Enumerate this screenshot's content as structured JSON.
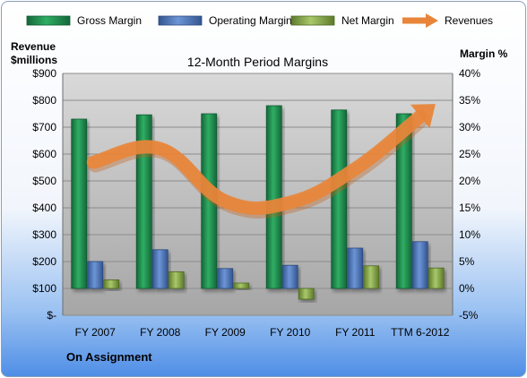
{
  "chart_data": {
    "type": "bar",
    "title": "12-Month Period Margins",
    "company": "On Assignment",
    "y_left_label_line1": "Revenue",
    "y_left_label_line2": "$millions",
    "y_right_label": "Margin %",
    "y_left_ticks": [
      "$-",
      "$100",
      "$200",
      "$300",
      "$400",
      "$500",
      "$600",
      "$700",
      "$800",
      "$900"
    ],
    "y_right_ticks": [
      "-5%",
      "0%",
      "5%",
      "10%",
      "15%",
      "20%",
      "25%",
      "30%",
      "35%",
      "40%"
    ],
    "ylim_left": [
      0,
      900
    ],
    "ylim_right": [
      -5,
      40
    ],
    "categories": [
      "FY 2007",
      "FY 2008",
      "FY 2009",
      "FY 2010",
      "FY 2011",
      "TTM 6-2012"
    ],
    "series": [
      {
        "name": "Gross Margin",
        "type": "bar",
        "axis": "right",
        "color": "#1f8a4c",
        "values": [
          31.5,
          32.3,
          32.5,
          34.0,
          33.2,
          32.5
        ]
      },
      {
        "name": "Operating Margin",
        "type": "bar",
        "axis": "right",
        "color": "#4f76b8",
        "values": [
          5.0,
          7.2,
          3.7,
          4.3,
          7.5,
          8.7
        ]
      },
      {
        "name": "Net Margin",
        "type": "bar",
        "axis": "right",
        "color": "#8fb050",
        "values": [
          1.6,
          3.1,
          1.0,
          -2.0,
          4.2,
          3.8
        ]
      },
      {
        "name": "Revenues",
        "type": "line",
        "axis": "left",
        "color": "#e8853a",
        "values": [
          570,
          620,
          425,
          420,
          545,
          740
        ]
      }
    ],
    "grid": true,
    "legend_position": "top"
  }
}
